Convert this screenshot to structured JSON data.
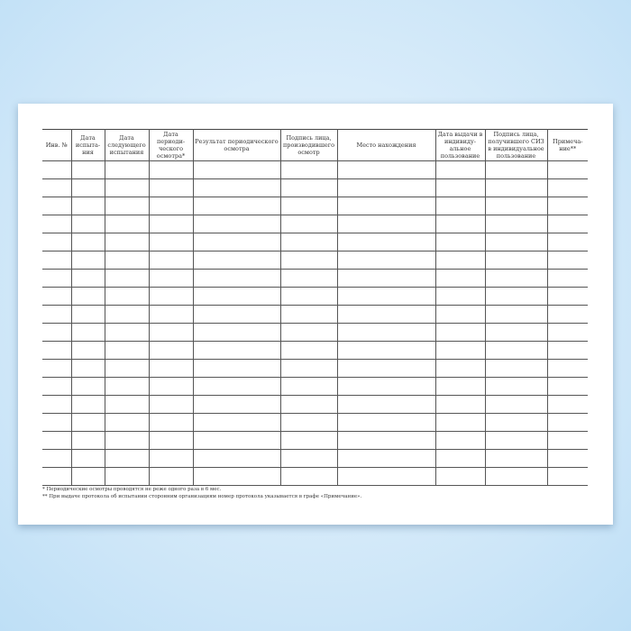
{
  "table": {
    "headers": [
      "Инв. №",
      "Дата испыта-ния",
      "Дата следующего испытания",
      "Дата периоди-ческого осмотра*",
      "Результат периодического осмотра",
      "Подпись лица, производившего осмотр",
      "Место нахождения",
      "Дата выдачи в индивиду-альное пользование",
      "Подпись лица, получившего СИЗ в индивидуальное пользование",
      "Примеча-ние**"
    ],
    "empty_rows": 18
  },
  "footnotes": [
    "* Периодические осмотры проводятся не реже одного раза в 6 мес.",
    "** При выдаче протокола об испытании сторонним организациям номер протокола указывается в графе «Примечание»."
  ]
}
